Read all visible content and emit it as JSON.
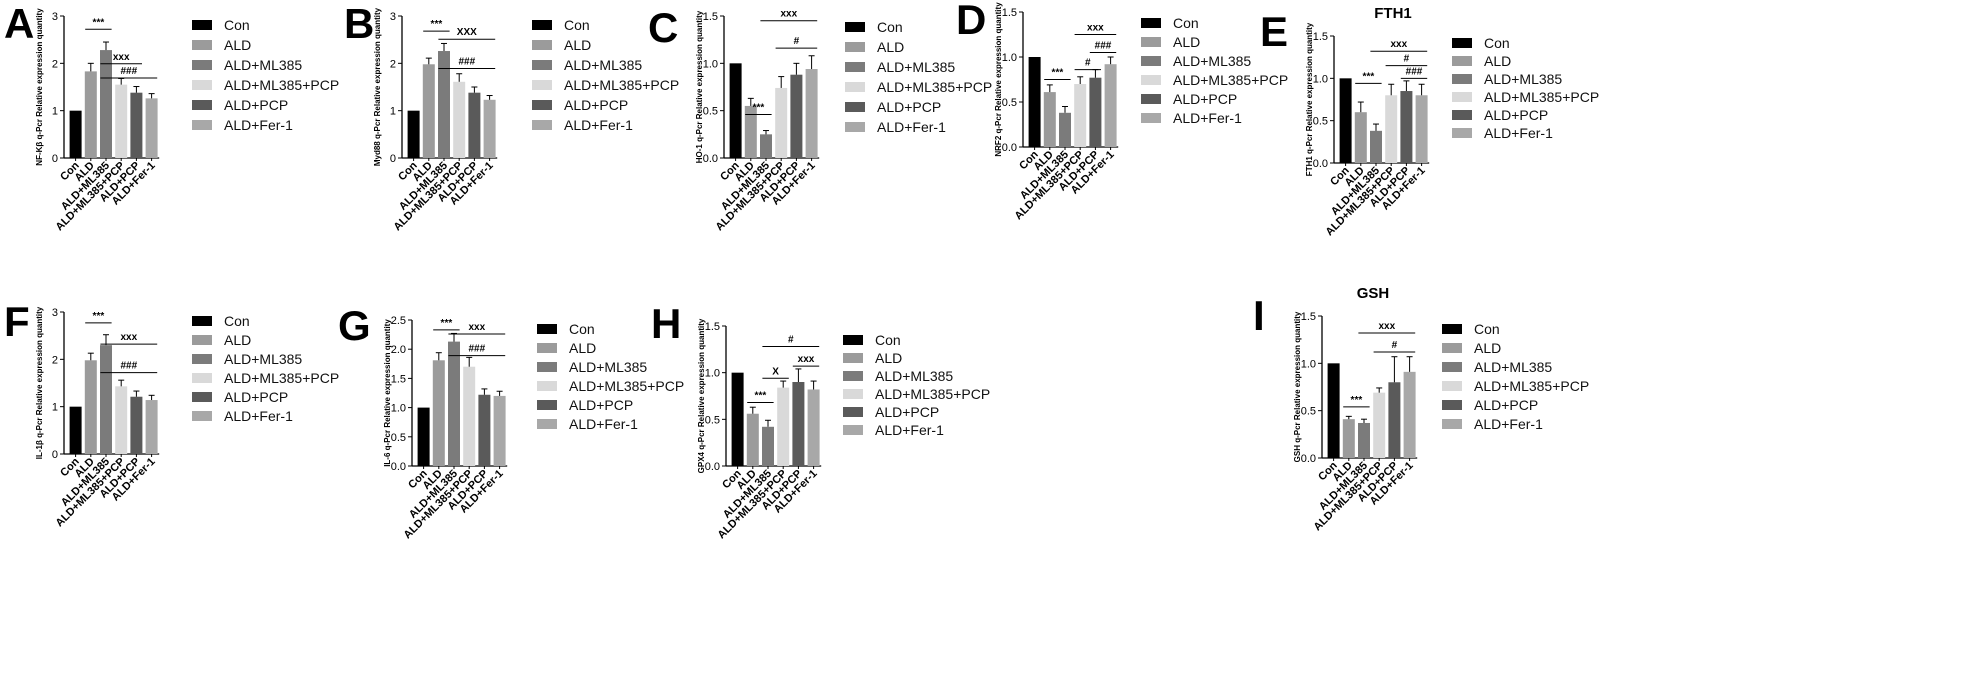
{
  "figure": {
    "legend_entries": [
      "Con",
      "ALD",
      "ALD+ML385",
      "ALD+ML385+PCP",
      "ALD+PCP",
      "ALD+Fer-1"
    ],
    "group_colors": [
      "#000000",
      "#9b9b9b",
      "#7b7b7b",
      "#d9d9d9",
      "#5a5a5a",
      "#a8a8a8"
    ]
  },
  "chart_data": [
    {
      "panel": "A",
      "type": "bar",
      "title": "",
      "ylabel": "NF-Kβ q-Pcr Relative expression quantity",
      "categories": [
        "Con",
        "ALD",
        "ALD+ML385",
        "ALD+ML385+PCP",
        "ALD+PCP",
        "ALD+Fer-1"
      ],
      "values": [
        1.0,
        1.83,
        2.28,
        1.55,
        1.38,
        1.26
      ],
      "errors": [
        0,
        0.17,
        0.17,
        0.13,
        0.13,
        0.1
      ],
      "ylim": [
        0,
        3
      ],
      "yticks": [
        "0",
        "1",
        "2",
        "3"
      ],
      "annotations": [
        {
          "label": "***",
          "from": 1,
          "to": 2,
          "y": 2.72
        },
        {
          "label": "xxx",
          "from": 2,
          "to": 4,
          "y": 1.99
        },
        {
          "label": "###",
          "from": 2,
          "to": 5,
          "y": 1.69
        }
      ]
    },
    {
      "panel": "B",
      "type": "bar",
      "title": "",
      "ylabel": "Myd88 q-Pcr Relative expression quantity",
      "categories": [
        "Con",
        "ALD",
        "ALD+ML385",
        "ALD+ML385+PCP",
        "ALD+PCP",
        "ALD+Fer-1"
      ],
      "values": [
        1.0,
        1.98,
        2.26,
        1.61,
        1.38,
        1.23
      ],
      "errors": [
        0,
        0.13,
        0.16,
        0.17,
        0.12,
        0.09
      ],
      "ylim": [
        0,
        3
      ],
      "yticks": [
        "0",
        "1",
        "2",
        "3"
      ],
      "annotations": [
        {
          "label": "***",
          "from": 1,
          "to": 2,
          "y": 2.68
        },
        {
          "label": "XXX",
          "from": 2,
          "to": 5,
          "y": 2.51
        },
        {
          "label": "###",
          "from": 2,
          "to": 5,
          "y": 1.89
        }
      ]
    },
    {
      "panel": "C",
      "type": "bar",
      "title": "",
      "ylabel": "HO-1 q-Pcr Relative expression quantity",
      "categories": [
        "Con",
        "ALD",
        "ALD+ML385",
        "ALD+ML385+PCP",
        "ALD+PCP",
        "ALD+Fer-1"
      ],
      "values": [
        1.0,
        0.55,
        0.25,
        0.74,
        0.88,
        0.94
      ],
      "errors": [
        0,
        0.08,
        0.04,
        0.12,
        0.12,
        0.14
      ],
      "ylim": [
        0,
        1.5
      ],
      "yticks": [
        "0.0",
        "0.5",
        "1.0",
        "1.5"
      ],
      "annotations": [
        {
          "label": "***",
          "from": 1,
          "to": 2,
          "y": 0.46
        },
        {
          "label": "#",
          "from": 3,
          "to": 5,
          "y": 1.16
        },
        {
          "label": "xxx",
          "from": 2,
          "to": 5,
          "y": 1.45
        }
      ]
    },
    {
      "panel": "D",
      "type": "bar",
      "title": "",
      "ylabel": "NRF2 q-Pcr Relative expression quantity",
      "categories": [
        "Con",
        "ALD",
        "ALD+ML385",
        "ALD+ML385+PCP",
        "ALD+PCP",
        "ALD+Fer-1"
      ],
      "values": [
        1.0,
        0.61,
        0.38,
        0.7,
        0.77,
        0.92
      ],
      "errors": [
        0,
        0.08,
        0.07,
        0.08,
        0.09,
        0.08
      ],
      "ylim": [
        0,
        1.5
      ],
      "yticks": [
        "0.0",
        "0.5",
        "1.0",
        "1.5"
      ],
      "annotations": [
        {
          "label": "***",
          "from": 1,
          "to": 2,
          "y": 0.75
        },
        {
          "label": "#",
          "from": 3,
          "to": 4,
          "y": 0.86
        },
        {
          "label": "###",
          "from": 4,
          "to": 5,
          "y": 1.05
        },
        {
          "label": "xxx",
          "from": 3,
          "to": 5,
          "y": 1.25
        }
      ]
    },
    {
      "panel": "E",
      "type": "bar",
      "title": "FTH1",
      "ylabel": "FTH1 q-Pcr Relative expression quantity",
      "categories": [
        "Con",
        "ALD",
        "ALD+ML385",
        "ALD+ML385+PCP",
        "ALD+PCP",
        "ALD+Fer-1"
      ],
      "values": [
        1.0,
        0.6,
        0.38,
        0.8,
        0.85,
        0.8
      ],
      "errors": [
        0,
        0.12,
        0.08,
        0.13,
        0.12,
        0.13
      ],
      "ylim": [
        0,
        1.5
      ],
      "yticks": [
        "0.0",
        "0.5",
        "1.0",
        "1.5"
      ],
      "annotations": [
        {
          "label": "***",
          "from": 1,
          "to": 2,
          "y": 0.94
        },
        {
          "label": "###",
          "from": 4,
          "to": 5,
          "y": 1.0
        },
        {
          "label": "#",
          "from": 3,
          "to": 5,
          "y": 1.15
        },
        {
          "label": "xxx",
          "from": 2,
          "to": 5,
          "y": 1.32
        }
      ]
    },
    {
      "panel": "F",
      "type": "bar",
      "title": "",
      "ylabel": "IL-1β q-Pcr Relative expression quantity",
      "categories": [
        "Con",
        "ALD",
        "ALD+ML385",
        "ALD+ML385+PCP",
        "ALD+PCP",
        "ALD+Fer-1"
      ],
      "values": [
        1.0,
        1.98,
        2.3,
        1.43,
        1.21,
        1.14
      ],
      "errors": [
        0,
        0.15,
        0.22,
        0.13,
        0.12,
        0.1
      ],
      "ylim": [
        0,
        3
      ],
      "yticks": [
        "0",
        "1",
        "2",
        "3"
      ],
      "annotations": [
        {
          "label": "***",
          "from": 1,
          "to": 2,
          "y": 2.77
        },
        {
          "label": "xxx",
          "from": 2,
          "to": 5,
          "y": 2.32
        },
        {
          "label": "###",
          "from": 2,
          "to": 5,
          "y": 1.72
        }
      ]
    },
    {
      "panel": "G",
      "type": "bar",
      "title": "",
      "ylabel": "IL-6 q-Pcr Relative expression quantity",
      "categories": [
        "Con",
        "ALD",
        "ALD+ML385",
        "ALD+ML385+PCP",
        "ALD+PCP",
        "ALD+Fer-1"
      ],
      "values": [
        1.0,
        1.81,
        2.13,
        1.7,
        1.22,
        1.2
      ],
      "errors": [
        0,
        0.13,
        0.14,
        0.16,
        0.1,
        0.08
      ],
      "ylim": [
        0,
        2.5
      ],
      "yticks": [
        "0.0",
        "0.5",
        "1.0",
        "1.5",
        "2.0",
        "2.5"
      ],
      "annotations": [
        {
          "label": "***",
          "from": 1,
          "to": 2,
          "y": 2.33
        },
        {
          "label": "xxx",
          "from": 2,
          "to": 5,
          "y": 2.26
        },
        {
          "label": "###",
          "from": 2,
          "to": 5,
          "y": 1.89
        }
      ]
    },
    {
      "panel": "H",
      "type": "bar",
      "title": "",
      "ylabel": "GPX4 q-Pcr Relative expression quantity",
      "categories": [
        "Con",
        "ALD",
        "ALD+ML385",
        "ALD+ML385+PCP",
        "ALD+PCP",
        "ALD+Fer-1"
      ],
      "values": [
        1.0,
        0.56,
        0.42,
        0.84,
        0.9,
        0.82
      ],
      "errors": [
        0,
        0.07,
        0.07,
        0.07,
        0.14,
        0.09
      ],
      "ylim": [
        0,
        1.5
      ],
      "yticks": [
        "0.0",
        "0.5",
        "1.0",
        "1.5"
      ],
      "annotations": [
        {
          "label": "***",
          "from": 1,
          "to": 2,
          "y": 0.68
        },
        {
          "label": "X",
          "from": 2,
          "to": 3,
          "y": 0.94
        },
        {
          "label": "xxx",
          "from": 4,
          "to": 5,
          "y": 1.07
        },
        {
          "label": "#",
          "from": 2,
          "to": 5,
          "y": 1.28
        }
      ]
    },
    {
      "panel": "I",
      "type": "bar",
      "title": "GSH",
      "ylabel": "GSH q-Pcr Relative expression quantity",
      "categories": [
        "Con",
        "ALD",
        "ALD+ML385",
        "ALD+ML385+PCP",
        "ALD+PCP",
        "ALD+Fer-1"
      ],
      "values": [
        1.0,
        0.41,
        0.37,
        0.69,
        0.8,
        0.91
      ],
      "errors": [
        0,
        0.03,
        0.04,
        0.05,
        0.27,
        0.16
      ],
      "ylim": [
        0,
        1.5
      ],
      "yticks": [
        "0.0",
        "0.5",
        "1.0",
        "1.5"
      ],
      "annotations": [
        {
          "label": "***",
          "from": 1,
          "to": 2,
          "y": 0.54
        },
        {
          "label": "#",
          "from": 3,
          "to": 5,
          "y": 1.12
        },
        {
          "label": "xxx",
          "from": 2,
          "to": 5,
          "y": 1.32
        }
      ]
    }
  ]
}
